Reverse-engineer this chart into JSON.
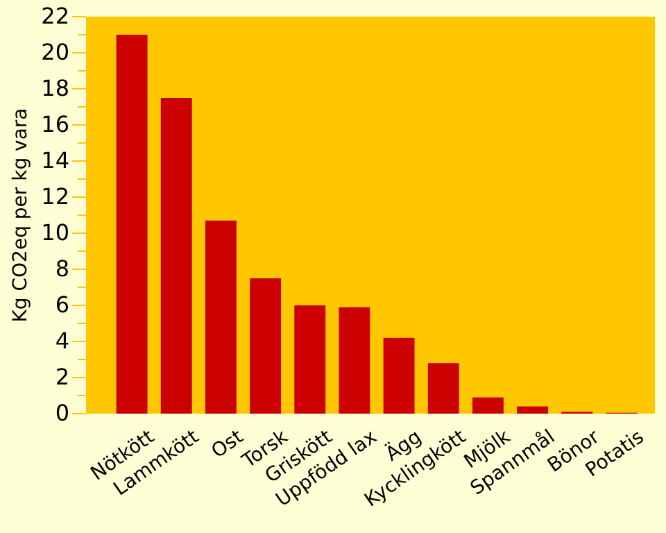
{
  "chart_data": {
    "type": "bar",
    "ylabel": "Kg CO2eq per kg vara",
    "categories": [
      "Nötkött",
      "Lammkött",
      "Ost",
      "Torsk",
      "Griskött",
      "Uppfödd lax",
      "Ägg",
      "Kycklingkött",
      "Mjölk",
      "Spannmål",
      "Bönor",
      "Potatis"
    ],
    "values": [
      21,
      17.5,
      10.7,
      7.5,
      6.0,
      5.9,
      4.2,
      2.8,
      0.9,
      0.4,
      0.1,
      0.05
    ],
    "color": "#cc0000",
    "ylim": [
      0,
      22
    ],
    "yticks": [
      0,
      {
        "value": 1,
        "label": null
      },
      2,
      {
        "value": 3,
        "label": null
      },
      4,
      {
        "value": 5,
        "label": null
      },
      6,
      {
        "value": 7,
        "label": null
      },
      8,
      {
        "value": 9,
        "label": null
      },
      10,
      {
        "value": 11,
        "label": null
      },
      12,
      {
        "value": 13,
        "label": null
      },
      14,
      {
        "value": 15,
        "label": null
      },
      16,
      {
        "value": 17,
        "label": null
      },
      18,
      {
        "value": 19,
        "label": null
      },
      20,
      {
        "value": 21,
        "label": null
      },
      22
    ],
    "grid": false
  }
}
